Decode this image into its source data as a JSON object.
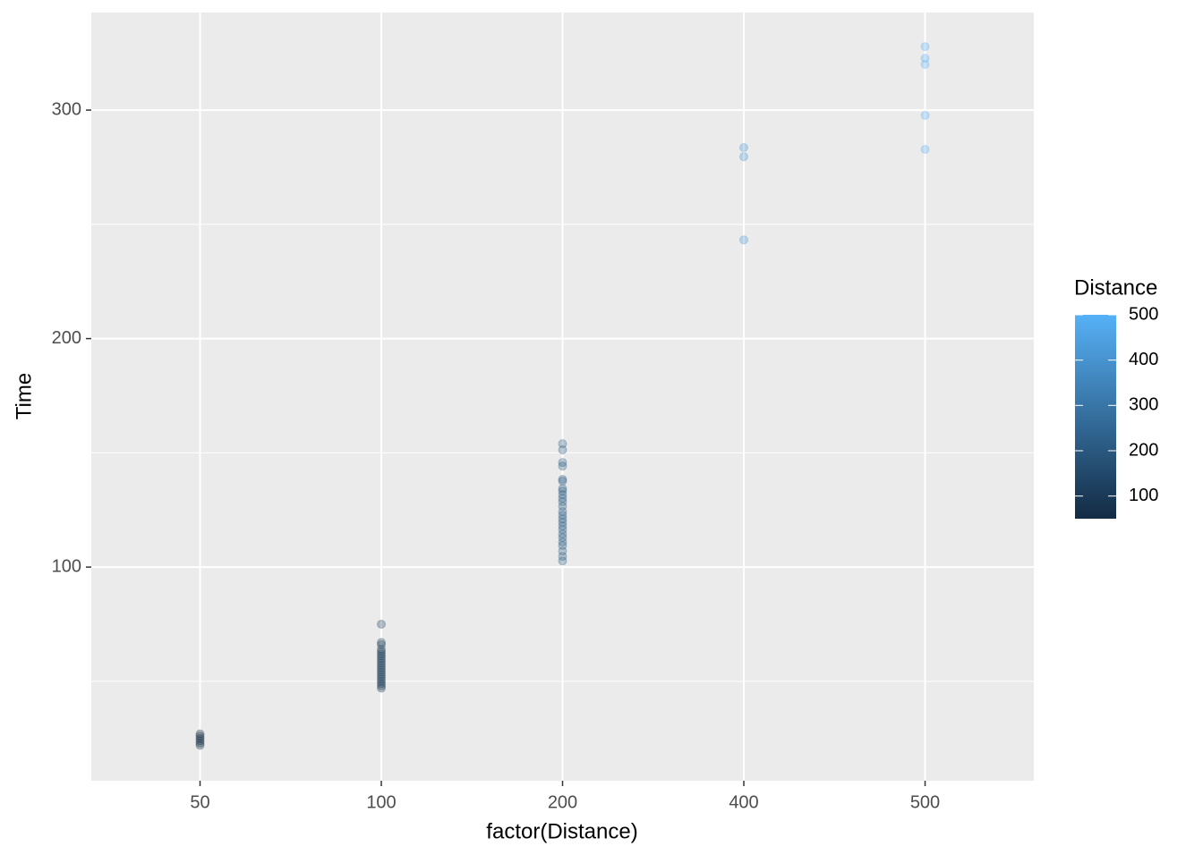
{
  "chart_data": {
    "type": "scatter",
    "x_label": "factor(Distance)",
    "y_label": "Time",
    "categories": [
      50,
      100,
      200,
      400,
      500
    ],
    "x": [
      50,
      50,
      50,
      50,
      50,
      50,
      100,
      100,
      100,
      100,
      100,
      100,
      100,
      100,
      100,
      100,
      100,
      100,
      100,
      100,
      100,
      100,
      100,
      100,
      100,
      100,
      100,
      200,
      200,
      200,
      200,
      200,
      200,
      200,
      200,
      200,
      200,
      200,
      200,
      200,
      200,
      200,
      200,
      200,
      200,
      200,
      200,
      200,
      200,
      200,
      200,
      200,
      400,
      400,
      400,
      500,
      500,
      500,
      500,
      500
    ],
    "y": [
      22,
      23,
      24,
      25,
      26,
      27,
      75,
      67,
      66,
      64,
      63,
      62,
      61,
      60,
      59,
      58,
      57,
      56,
      55,
      54,
      53,
      52,
      51,
      50,
      49,
      48,
      47,
      154,
      151.3,
      145.8,
      144.2,
      138.4,
      137.6,
      134.4,
      133.3,
      131.7,
      130.1,
      128.6,
      126.6,
      124.3,
      122.7,
      121.1,
      119.6,
      118,
      116.4,
      114.5,
      112.9,
      111,
      109.4,
      107,
      104.7,
      102.7,
      283.6,
      279.6,
      243.2,
      327.8,
      322.7,
      320,
      297.7,
      282.8
    ],
    "ylim": [
      6.5,
      342.7
    ],
    "yticks": [
      100,
      200,
      300
    ],
    "grid": true,
    "minor_grid": true,
    "color_scale": {
      "title": "Distance",
      "low": "#132B43",
      "high": "#56B1F7",
      "limits": [
        50,
        500
      ],
      "ticks": [
        100,
        200,
        300,
        400,
        500
      ]
    },
    "opacity": 0.3
  }
}
